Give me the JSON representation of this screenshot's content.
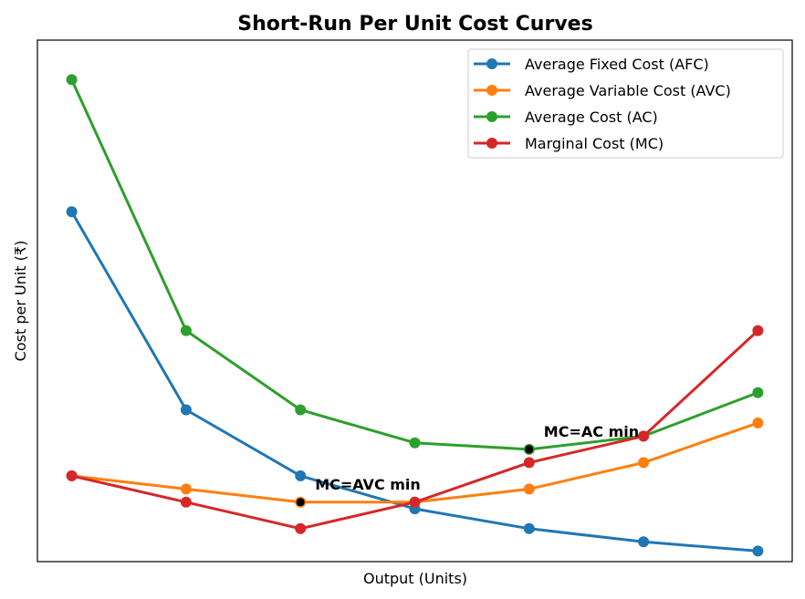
{
  "chart_data": {
    "type": "line",
    "title": "Short-Run Per Unit Cost Curves",
    "xlabel": "Output (Units)",
    "ylabel": "Cost per Unit (₹)",
    "x": [
      1,
      2,
      3,
      4,
      5,
      6,
      7
    ],
    "xlim": [
      0.7,
      7.3
    ],
    "ylim": [
      1.5,
      41
    ],
    "grid": false,
    "legend_position": "top-right",
    "series": [
      {
        "name": "Average Fixed Cost (AFC)",
        "color": "#1f77b4",
        "values": [
          28,
          13,
          8,
          5.5,
          4,
          3,
          2.3
        ]
      },
      {
        "name": "Average Variable Cost (AVC)",
        "color": "#ff7f0e",
        "values": [
          8,
          7,
          6,
          6,
          7,
          9,
          12
        ]
      },
      {
        "name": "Average Cost (AC)",
        "color": "#2ca02c",
        "values": [
          38,
          19,
          13,
          10.5,
          10,
          11,
          14.3
        ]
      },
      {
        "name": "Marginal Cost (MC)",
        "color": "#d62728",
        "values": [
          8,
          6,
          4,
          6,
          9,
          11,
          19
        ]
      }
    ],
    "annotations": [
      {
        "text": "MC=AVC min",
        "x": 3,
        "y": 6
      },
      {
        "text": "MC=AC min",
        "x": 5,
        "y": 10
      }
    ]
  }
}
